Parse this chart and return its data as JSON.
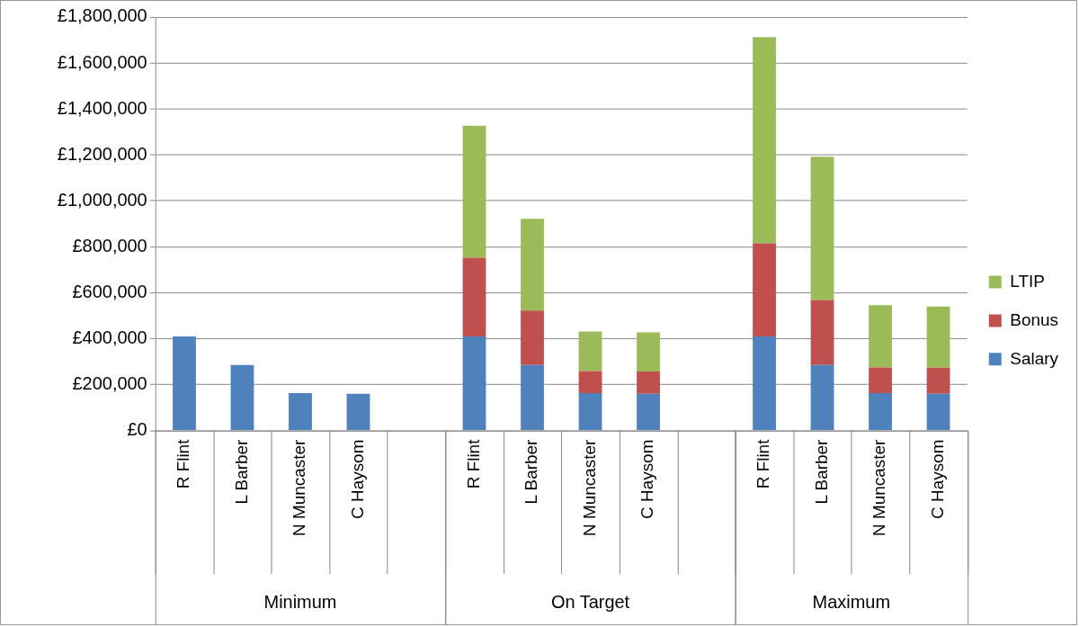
{
  "chart_data": {
    "type": "bar",
    "stacked": true,
    "legend": "right",
    "grid": "y",
    "categories": [
      "R Flint",
      "L Barber",
      "N Muncaster",
      "C Haysom",
      null,
      "R Flint",
      "L Barber",
      "N Muncaster",
      "C Haysom",
      null,
      "R Flint",
      "L Barber",
      "N Muncaster",
      "C Haysom"
    ],
    "annotations": [
      "Minimum",
      "On Target",
      "Maximum"
    ],
    "ylim": [
      0,
      1800000
    ],
    "yticks": [
      {
        "value": 0,
        "label": "£0"
      },
      {
        "value": 200000,
        "label": "£200,000"
      },
      {
        "value": 400000,
        "label": "£400,000"
      },
      {
        "value": 600000,
        "label": "£600,000"
      },
      {
        "value": 800000,
        "label": "£800,000"
      },
      {
        "value": 1000000,
        "label": "£1,000,000"
      },
      {
        "value": 1200000,
        "label": "£1,200,000"
      },
      {
        "value": 1400000,
        "label": "£1,400,000"
      },
      {
        "value": 1600000,
        "label": "£1,600,000"
      },
      {
        "value": 1800000,
        "label": "£1,800,000"
      }
    ],
    "series": [
      {
        "name": "Salary",
        "color": "#4f81bd",
        "values": [
          410000,
          285000,
          163000,
          160000,
          null,
          410000,
          285000,
          163000,
          160000,
          null,
          410000,
          285000,
          163000,
          160000
        ]
      },
      {
        "name": "Bonus",
        "color": "#c0504d",
        "values": [
          null,
          null,
          null,
          null,
          null,
          342000,
          237000,
          96000,
          97000,
          null,
          405000,
          283000,
          112000,
          114000
        ]
      },
      {
        "name": "LTIP",
        "color": "#9bbb59",
        "values": [
          null,
          null,
          null,
          null,
          null,
          575000,
          400000,
          172000,
          170000,
          null,
          898000,
          624000,
          271000,
          266000
        ]
      }
    ]
  }
}
